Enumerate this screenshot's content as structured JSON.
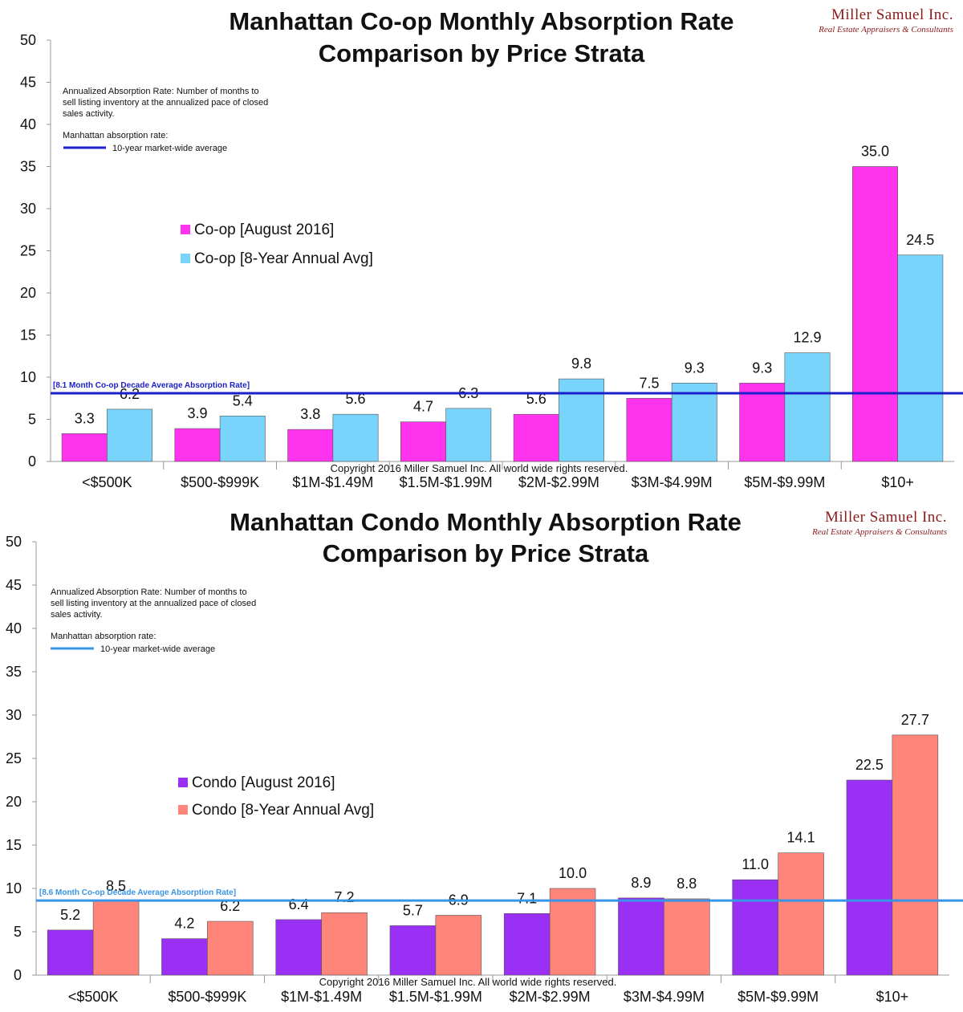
{
  "colors": {
    "coop_current": "#ff33ee",
    "coop_avg": "#79d4fb",
    "coop_line": "#1a1fc8",
    "condo_current": "#9b30f5",
    "condo_avg": "#ff857b",
    "condo_line": "#3894e6",
    "brand": "#8b1a1a"
  },
  "chart_data": [
    {
      "type": "bar",
      "title": "Manhattan Co-op Monthly Absorption Rate",
      "subtitle": "Comparison by Price Strata",
      "categories": [
        "<$500K",
        "$500-$999K",
        "$1M-$1.49M",
        "$1.5M-$1.99M",
        "$2M-$2.99M",
        "$3M-$4.99M",
        "$5M-$9.99M",
        "$10+"
      ],
      "series": [
        {
          "name": "Co-op [August 2016]",
          "color_key": "coop_current",
          "values": [
            3.3,
            3.9,
            3.8,
            4.7,
            5.6,
            7.5,
            9.3,
            35.0
          ],
          "labels": [
            "3.3",
            "3.9",
            "3.8",
            "4.7",
            "5.6",
            "7.5",
            "9.3",
            "35.0"
          ]
        },
        {
          "name": "Co-op [8-Year Annual Avg]",
          "color_key": "coop_avg",
          "values": [
            6.2,
            5.4,
            5.6,
            6.3,
            9.8,
            9.3,
            12.9,
            24.5
          ],
          "labels": [
            "6.2",
            "5.4",
            "5.6",
            "6.3",
            "9.8",
            "9.3",
            "12.9",
            "24.5"
          ]
        }
      ],
      "ylim": [
        0,
        50
      ],
      "yticks": [
        0,
        5,
        10,
        15,
        20,
        25,
        30,
        35,
        40,
        45,
        50
      ],
      "reference_line": {
        "value": 8.1,
        "label": "[8.1 Month Co-op Decade Average Absorption Rate]",
        "color_key": "coop_line"
      },
      "note": [
        "Annualized Absorption Rate: Number of months to",
        "sell listing inventory at the annualized pace of closed",
        "sales activity."
      ],
      "note_legend": {
        "heading": "Manhattan absorption rate:",
        "item": "10-year market-wide average"
      },
      "copyright": "Copyright 2016 Miller Samuel Inc.  All world wide rights reserved.",
      "brand": {
        "name": "Miller Samuel Inc.",
        "sub": "Real Estate Appraisers & Consultants"
      },
      "xlabel": "",
      "ylabel": ""
    },
    {
      "type": "bar",
      "title": "Manhattan Condo Monthly Absorption Rate",
      "subtitle": "Comparison by Price Strata",
      "categories": [
        "<$500K",
        "$500-$999K",
        "$1M-$1.49M",
        "$1.5M-$1.99M",
        "$2M-$2.99M",
        "$3M-$4.99M",
        "$5M-$9.99M",
        "$10+"
      ],
      "series": [
        {
          "name": "Condo [August 2016]",
          "color_key": "condo_current",
          "values": [
            5.2,
            4.2,
            6.4,
            5.7,
            7.1,
            8.9,
            11.0,
            22.5
          ],
          "labels": [
            "5.2",
            "4.2",
            "6.4",
            "5.7",
            "7.1",
            "8.9",
            "11.0",
            "22.5"
          ]
        },
        {
          "name": "Condo [8-Year Annual Avg]",
          "color_key": "condo_avg",
          "values": [
            8.5,
            6.2,
            7.2,
            6.9,
            10.0,
            8.8,
            14.1,
            27.7
          ],
          "labels": [
            "8.5",
            "6.2",
            "7.2",
            "6.9",
            "10.0",
            "8.8",
            "14.1",
            "27.7"
          ]
        }
      ],
      "ylim": [
        0,
        50
      ],
      "yticks": [
        0,
        5,
        10,
        15,
        20,
        25,
        30,
        35,
        40,
        45,
        50
      ],
      "reference_line": {
        "value": 8.6,
        "label": "[8.6 Month Co-op Decade Average Absorption Rate]",
        "color_key": "condo_line"
      },
      "note": [
        "Annualized Absorption Rate: Number of months to",
        "sell listing inventory at the annualized pace of closed",
        "sales activity."
      ],
      "note_legend": {
        "heading": "Manhattan absorption rate:",
        "item": "10-year market-wide average"
      },
      "copyright": "Copyright 2016 Miller Samuel Inc.  All world wide rights reserved.",
      "brand": {
        "name": "Miller Samuel Inc.",
        "sub": "Real Estate Appraisers & Consultants"
      },
      "xlabel": "",
      "ylabel": ""
    }
  ]
}
